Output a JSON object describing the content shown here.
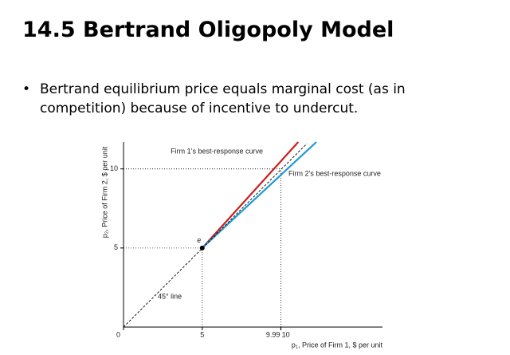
{
  "title": "14.5  Bertrand Oligopoly Model",
  "bullet": "Bertrand equilibrium price equals marginal cost (as in competition) because of incentive to undercut.",
  "chart_data": {
    "type": "line",
    "x_label": "p₁, Price of Firm 1, $ per unit",
    "y_label": "p₂, Price of Firm 2, $ per unit",
    "xlim": [
      0,
      16.45
    ],
    "ylim": [
      0,
      11.7
    ],
    "xticks": [
      0,
      5,
      9.99,
      10
    ],
    "yticks": [
      5,
      10
    ],
    "series": [
      {
        "name": "Firm 1’s best-response curve",
        "color": "#c8201e",
        "x": [
          5,
          11.1
        ],
        "values": [
          5,
          11.7
        ]
      },
      {
        "name": "Firm 2’s best-response curve",
        "color": "#1e9ad6",
        "x": [
          5,
          12.25
        ],
        "values": [
          5,
          11.7
        ]
      },
      {
        "name": "45° line",
        "color": "#000000",
        "dashed": true,
        "x": [
          0,
          11.65
        ],
        "values": [
          0,
          11.6
        ]
      }
    ],
    "guides": [
      {
        "x": 5,
        "y": 5
      },
      {
        "x": 9.99,
        "y": 10
      },
      {
        "x": 10,
        "y": 10
      }
    ],
    "points": [
      {
        "label": "e",
        "x": 5,
        "y": 5
      }
    ]
  }
}
